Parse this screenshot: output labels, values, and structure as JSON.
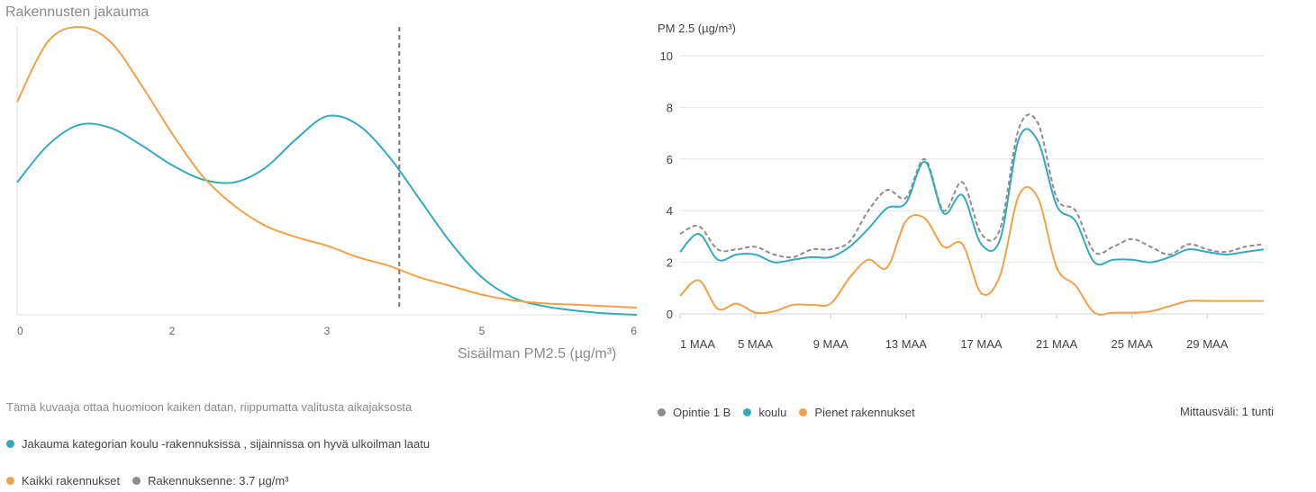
{
  "left_panel": {
    "title": "Rakennusten jakauma",
    "xaxis_title": "Sisäilman PM2.5 (µg/m³)",
    "note": "Tämä kuvaaja ottaa huomioon kaiken datan, riippumatta valitusta aikajaksosta",
    "legend": {
      "series_a": "Jakauma kategorian koulu -rakennuksissa , sijainnissa on hyvä ulkoilman laatu",
      "series_b": "Kaikki rakennukset",
      "marker": "Rakennuksenne: 3.7 µg/m³"
    }
  },
  "right_panel": {
    "yaxis_title": "PM 2.5 (µg/m³)",
    "legend": {
      "s1": "Opintie 1 B",
      "s2": "koulu",
      "s3": "Pienet rakennukset"
    },
    "interval": "Mittausväli: 1 tunti"
  },
  "colors": {
    "teal": "#36a9bf",
    "orange": "#f0a14a",
    "gray": "#8c8c8c"
  },
  "chart_data": [
    {
      "type": "area",
      "x_ticks": [
        "0",
        "2",
        "3",
        "5",
        "6"
      ],
      "x_tick_positions": [
        0,
        1.5,
        3,
        4.5,
        6
      ],
      "xlim": [
        0,
        6
      ],
      "series": [
        {
          "color": "teal",
          "x": [
            0,
            0.3,
            0.6,
            0.9,
            1.2,
            1.5,
            1.8,
            2.1,
            2.4,
            2.7,
            3.0,
            3.3,
            3.6,
            3.9,
            4.2,
            4.5,
            4.8,
            5.1,
            5.4,
            5.7,
            6.0
          ],
          "y": [
            0.46,
            0.59,
            0.66,
            0.65,
            0.59,
            0.52,
            0.47,
            0.46,
            0.51,
            0.61,
            0.69,
            0.66,
            0.55,
            0.4,
            0.25,
            0.13,
            0.06,
            0.03,
            0.015,
            0.005,
            0.0
          ]
        },
        {
          "color": "orange",
          "x": [
            0,
            0.3,
            0.6,
            0.9,
            1.2,
            1.5,
            1.8,
            2.1,
            2.4,
            2.7,
            3.0,
            3.3,
            3.6,
            3.9,
            4.2,
            4.5,
            4.8,
            5.1,
            5.4,
            5.7,
            6.0
          ],
          "y": [
            0.74,
            0.95,
            1.0,
            0.95,
            0.8,
            0.63,
            0.48,
            0.38,
            0.31,
            0.27,
            0.24,
            0.2,
            0.17,
            0.13,
            0.1,
            0.07,
            0.05,
            0.04,
            0.035,
            0.03,
            0.025
          ]
        }
      ],
      "marker_x": 3.7
    },
    {
      "type": "line",
      "x_ticks": [
        "1 MAA",
        "5 MAA",
        "9 MAA",
        "13 MAA",
        "17 MAA",
        "21 MAA",
        "25 MAA",
        "29 MAA"
      ],
      "x": [
        1,
        2,
        3,
        4,
        5,
        6,
        7,
        8,
        9,
        10,
        11,
        12,
        13,
        14,
        15,
        16,
        17,
        18,
        19,
        20,
        21,
        22,
        23,
        24,
        25,
        26,
        27,
        28,
        29,
        30,
        31,
        32
      ],
      "xlim": [
        1,
        32
      ],
      "ylim": [
        0,
        10
      ],
      "y_ticks": [
        0,
        2,
        4,
        6,
        8,
        10
      ],
      "series": [
        {
          "name": "Opintie 1 B",
          "color": "gray",
          "dashed": true,
          "y": [
            3.1,
            3.4,
            2.5,
            2.5,
            2.6,
            2.3,
            2.2,
            2.5,
            2.5,
            2.8,
            4.0,
            4.8,
            4.5,
            6.0,
            4.0,
            5.1,
            3.1,
            3.3,
            7.2,
            7.4,
            4.5,
            4.0,
            2.4,
            2.6,
            2.9,
            2.6,
            2.3,
            2.7,
            2.5,
            2.4,
            2.6,
            2.7
          ]
        },
        {
          "name": "koulu",
          "color": "teal",
          "dashed": false,
          "y": [
            2.4,
            3.1,
            2.1,
            2.3,
            2.3,
            2.0,
            2.1,
            2.2,
            2.2,
            2.6,
            3.3,
            4.1,
            4.3,
            5.9,
            3.9,
            4.6,
            2.7,
            2.9,
            6.8,
            6.7,
            4.2,
            3.6,
            2.0,
            2.1,
            2.1,
            2.0,
            2.2,
            2.5,
            2.4,
            2.3,
            2.4,
            2.5
          ]
        },
        {
          "name": "Pienet rakennukset",
          "color": "orange",
          "dashed": false,
          "y": [
            0.7,
            1.3,
            0.2,
            0.4,
            0.05,
            0.1,
            0.35,
            0.35,
            0.4,
            1.4,
            2.1,
            1.8,
            3.6,
            3.7,
            2.6,
            2.7,
            0.8,
            1.5,
            4.6,
            4.5,
            1.8,
            1.1,
            0.05,
            0.05,
            0.05,
            0.1,
            0.3,
            0.5,
            0.5,
            0.5,
            0.5,
            0.5
          ]
        }
      ]
    }
  ]
}
